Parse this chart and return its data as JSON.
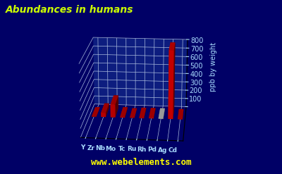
{
  "elements": [
    "Y",
    "Zr",
    "Nb",
    "Mo",
    "Tc",
    "Ru",
    "Rh",
    "Pd",
    "Ag",
    "Cd"
  ],
  "values": [
    0.5,
    50,
    150,
    10,
    0.1,
    10,
    10,
    10,
    790,
    7
  ],
  "bar_colors": [
    "#cc0000",
    "#cc0000",
    "#cc0000",
    "#cc0000",
    "#cc0000",
    "#cc0000",
    "#cc0000",
    "#c8c8c8",
    "#dd0000",
    "#cc0000"
  ],
  "title": "Abundances in humans",
  "ylabel": "ppb by weight",
  "ylim": [
    0,
    800
  ],
  "yticks": [
    0,
    100,
    200,
    300,
    400,
    500,
    600,
    700,
    800
  ],
  "bg_color": "#000066",
  "floor_color": "#1a3a99",
  "grid_color": "#aabbdd",
  "title_color": "#ccff00",
  "ylabel_color": "#aaddff",
  "tick_color": "#aaddff",
  "watermark": "www.webelements.com",
  "watermark_color": "#ffff00",
  "elev": 18,
  "azim": -85
}
